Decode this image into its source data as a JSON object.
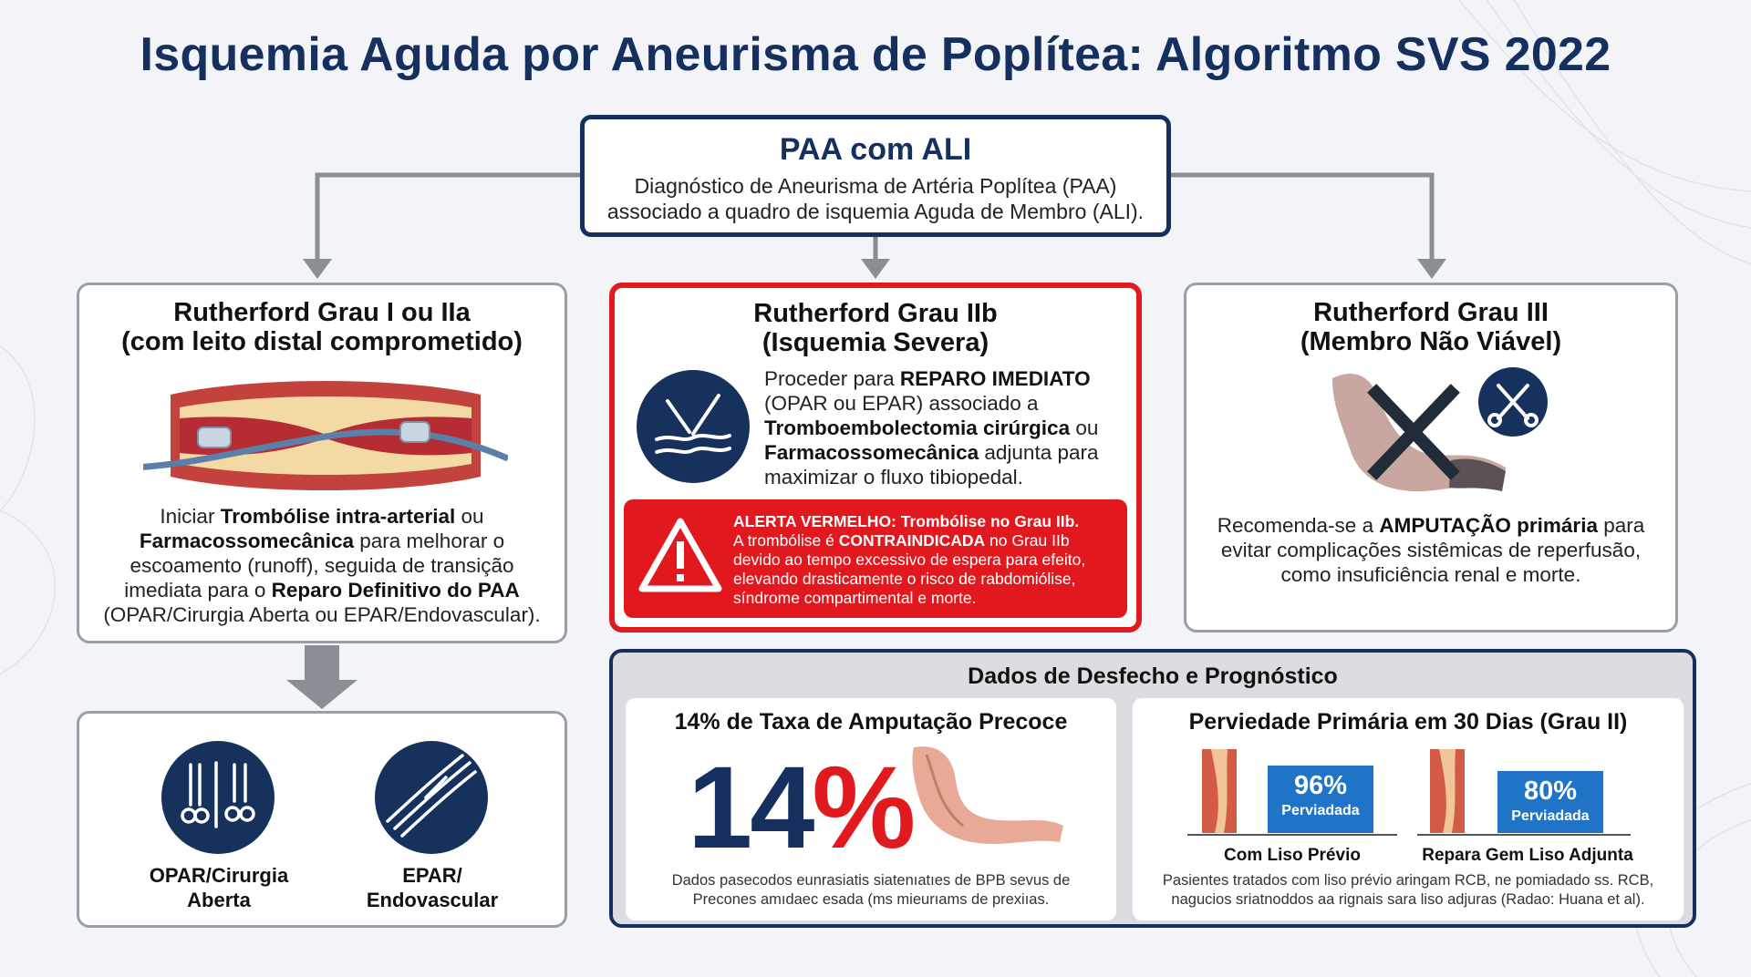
{
  "title": "Isquemia Aguda por Aneurisma de Poplítea: Algoritmo SVS 2022",
  "root": {
    "title": "PAA com ALI",
    "desc_line1": "Diagnóstico de Aneurisma de Artéria Poplítea (PAA)",
    "desc_line2": "associado a quadro de isquemia Aguda de Membro (ALI)."
  },
  "left": {
    "title_line1": "Rutherford Grau I ou IIa",
    "title_line2": "(com leito distal comprometido)",
    "t1": "Iniciar ",
    "t2": "Trombólise intra-arterial",
    "t3": " ou",
    "t4": "Farmacossomecânica",
    "t5": " para melhorar o",
    "t6": "escoamento (runoff), seguida de transição",
    "t7": "imediata para o ",
    "t8": "Reparo Definitivo do PAA",
    "t9": "(OPAR/Cirurgia Aberta ou EPAR/Endovascular)."
  },
  "middle": {
    "title_line1": "Rutherford Grau IIb",
    "title_line2": "(Isquemia Severa)",
    "t1": "Proceder para ",
    "t2": "REPARO IMEDIATO",
    "t3": "(OPAR ou EPAR) associado a",
    "t4": "Tromboembolectomia cirúrgica",
    "t5": " ou",
    "t6": "Farmacossomecânica",
    "t7": " adjunta para",
    "t8": "maximizar o fluxo tibiopedal.",
    "alert": {
      "title": "ALERTA VERMELHO: Trombólise no Grau IIb.",
      "a1": "A trombólise é ",
      "a2": "CONTRAINDICADA",
      "a3": " no Grau IIb",
      "a4": "devido ao tempo excessivo de espera para efeito,",
      "a5": "elevando drasticamente o risco de rabdomiólise,",
      "a6": "síndrome compartimental e morte."
    }
  },
  "right": {
    "title_line1": "Rutherford Grau III",
    "title_line2": "(Membro Não Viável)",
    "t1": "Recomenda-se a ",
    "t2": "AMPUTAÇÃO primária",
    "t3": " para",
    "t4": "evitar complicações sistêmicas de reperfusão,",
    "t5": "como insuficiência renal e morte."
  },
  "repair": {
    "opar_line1": "OPAR/Cirurgia",
    "opar_line2": "Aberta",
    "epar_line1": "EPAR/",
    "epar_line2": "Endovascular"
  },
  "outcomes": {
    "header": "Dados de Desfecho e Prognóstico",
    "left_title": "14% de Taxa de Amputação Precoce",
    "big_digits": "14",
    "big_pct": "%",
    "left_note1": "Dados pasecodos eunrasiatis siatenıatıes de BPB sevus de",
    "left_note2": "Precones amıdaec esada (ms mieurıams de prexiıas.",
    "right_title": "Perviedade Primária em 30 Dias (Grau II)",
    "stat1_value": "96%",
    "stat1_label": "Perviadada",
    "stat2_value": "80%",
    "stat2_label": "Perviadada",
    "sub1": "Com Liso Prévio",
    "sub2": "Repara Gem Liso Adjunta",
    "right_note1": "Pasientes tratados com liso prévio aringam RCB, ne pomiadado ss. RCB,",
    "right_note2": "nagucios sriatnoddos aa rignais sara liso adjuras (Radao: Huana et al)."
  },
  "colors": {
    "navy": "#15305e",
    "red": "#e01a1f",
    "blue": "#1f74c8",
    "gray_border": "#9aa0a8"
  }
}
